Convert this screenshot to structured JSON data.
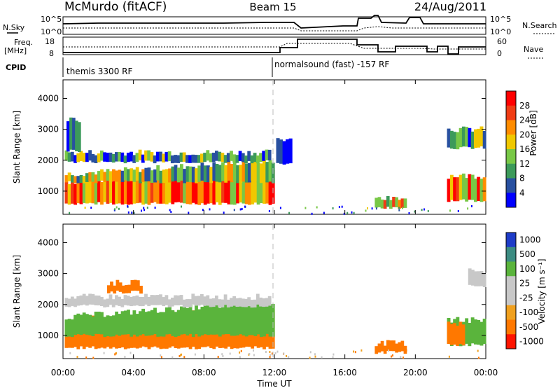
{
  "header": {
    "station": "McMurdo (fitACF)",
    "beam": "Beam 15",
    "date": "24/Aug/2011"
  },
  "panels": {
    "nsky_label": "N.Sky",
    "nsearch_label": "N.Search",
    "noise_ticks": [
      "10^5",
      "10^0"
    ],
    "freq_label_1": "Freq.",
    "freq_label_2": "[MHz]",
    "freq_ticks": [
      "18",
      "8"
    ],
    "nave_label": "Nave",
    "nave_ticks": [
      "60",
      "0"
    ],
    "cpid_label": "CPID",
    "cpid_1": "themis 3300 RF",
    "cpid_2": "normalsound (fast) -157 RF"
  },
  "colorbars": {
    "power": {
      "label": "Power [dB]",
      "ticks": [
        "28",
        "24",
        "20",
        "16",
        "12",
        "8",
        "4"
      ],
      "colors": [
        "#ff0000",
        "#f03c14",
        "#ff8c00",
        "#f0c800",
        "#78c846",
        "#3c9a5a",
        "#2850a0",
        "#0000ff"
      ]
    },
    "velocity": {
      "label": "Velocity [m s⁻¹]",
      "ticks": [
        "1000",
        "500",
        "100",
        "25",
        "-25",
        "-100",
        "-500",
        "-1000"
      ],
      "colors": [
        "#1e3cc8",
        "#3c8c82",
        "#5ab43c",
        "#c8c8c8",
        "#c8c8c8",
        "#f0a01e",
        "#ff7800",
        "#ff1400"
      ]
    }
  },
  "chart_data": [
    {
      "type": "heatmap",
      "title": "Power",
      "ylabel": "Slant Range [km]",
      "xlabel": "Time UT",
      "x_ticks": [
        "00:00",
        "04:00",
        "08:00",
        "12:00",
        "16:00",
        "20:00",
        "00:00"
      ],
      "y_ticks": [
        "1000",
        "2000",
        "3000",
        "4000"
      ],
      "ylim": [
        250,
        4600
      ],
      "xlim": [
        0,
        24
      ],
      "colorbar": "Power [dB]",
      "patches": [
        {
          "t0": 0.1,
          "t1": 12.0,
          "r_lo": 600,
          "r_hi": 1300,
          "value": 24,
          "r_end": 1700
        },
        {
          "t0": 0.1,
          "t1": 12.0,
          "r_lo": 1300,
          "r_hi": 1550,
          "value": 14,
          "r_end": 2000
        },
        {
          "t0": 0.1,
          "t1": 11.8,
          "r_lo": 1950,
          "r_hi": 2250,
          "value": 10
        },
        {
          "t0": 0.2,
          "t1": 1.0,
          "r_lo": 2300,
          "r_hi": 3300,
          "value": 6
        },
        {
          "t0": 12.1,
          "t1": 13.0,
          "r_lo": 1900,
          "r_hi": 2700,
          "value": 5
        },
        {
          "t0": 21.8,
          "t1": 24.0,
          "r_lo": 700,
          "r_hi": 1500,
          "value": 22
        },
        {
          "t0": 21.8,
          "t1": 24.0,
          "r_lo": 2400,
          "r_hi": 3000,
          "value": 12
        },
        {
          "t0": 17.7,
          "t1": 19.5,
          "r_lo": 450,
          "r_hi": 750,
          "value": 18
        }
      ]
    },
    {
      "type": "heatmap",
      "title": "Velocity",
      "ylabel": "Slant Range [km]",
      "xlabel": "Time UT",
      "x_ticks": [
        "00:00",
        "04:00",
        "08:00",
        "12:00",
        "16:00",
        "20:00",
        "00:00"
      ],
      "y_ticks": [
        "1000",
        "2000",
        "3000",
        "4000"
      ],
      "ylim": [
        250,
        4600
      ],
      "xlim": [
        0,
        24
      ],
      "colorbar": "Velocity [m s-1]",
      "patches": [
        {
          "t0": 0.1,
          "t1": 12.0,
          "r_lo": 600,
          "r_hi": 1500,
          "value": -300,
          "r_end": 1900
        },
        {
          "t0": 0.1,
          "t1": 12.0,
          "r_lo": 1000,
          "r_hi": 1600,
          "value": 200,
          "r_end": 2100
        },
        {
          "t0": 0.1,
          "t1": 11.8,
          "r_lo": 1950,
          "r_hi": 2250,
          "value": 0
        },
        {
          "t0": 2.5,
          "t1": 4.5,
          "r_lo": 2400,
          "r_hi": 2700,
          "value": -300
        },
        {
          "t0": 21.8,
          "t1": 24.0,
          "r_lo": 700,
          "r_hi": 1500,
          "value": 200
        },
        {
          "t0": 21.8,
          "t1": 22.8,
          "r_lo": 700,
          "r_hi": 1400,
          "value": -300
        },
        {
          "t0": 23.0,
          "t1": 24.0,
          "r_lo": 2600,
          "r_hi": 3100,
          "value": 0
        },
        {
          "t0": 17.7,
          "t1": 19.5,
          "r_lo": 450,
          "r_hi": 750,
          "value": -300
        }
      ]
    }
  ]
}
